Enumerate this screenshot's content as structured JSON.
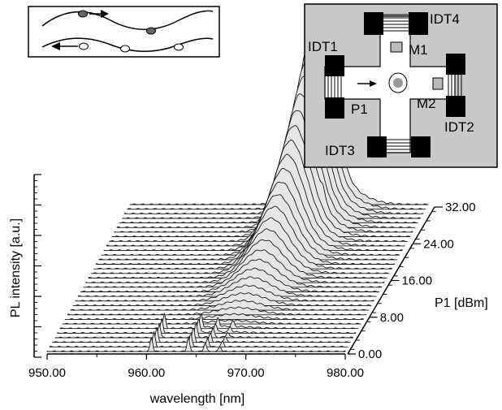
{
  "chart_data": {
    "type": "area",
    "style": "waterfall-3d",
    "x_axis": {
      "label": "wavelength [nm]",
      "range": [
        950,
        980
      ],
      "ticks": [
        "950.00",
        "960.00",
        "970.00",
        "980.00"
      ]
    },
    "depth_axis": {
      "label": "P1 [dBm]",
      "range": [
        0,
        32
      ],
      "ticks": [
        "0.00",
        "8.00",
        "16.00",
        "24.00",
        "32.00"
      ],
      "series_count": 33
    },
    "y_axis": {
      "label": "PL intensity [a.u.]"
    },
    "peak": {
      "wavelength_nm": 968.8,
      "width_nm": 2.0,
      "relative_intensity_at_0dBm": 1.0,
      "relative_intensity_at_32dBm": 0.0
    },
    "low_power_shoulder_nm": 971.0,
    "high_power_sidebands_nm": [
      960.5,
      964.2,
      965.9,
      967.4
    ],
    "grid": false,
    "legend": "none"
  },
  "inset_waves": {
    "description_icons": [
      "wave-top-icon",
      "wave-bottom-icon"
    ]
  },
  "inset_device": {
    "labels": {
      "idt1": "IDT1",
      "idt2": "IDT2",
      "idt3": "IDT3",
      "idt4": "IDT4",
      "m1": "M1",
      "m2": "M2",
      "p1": "P1"
    }
  }
}
